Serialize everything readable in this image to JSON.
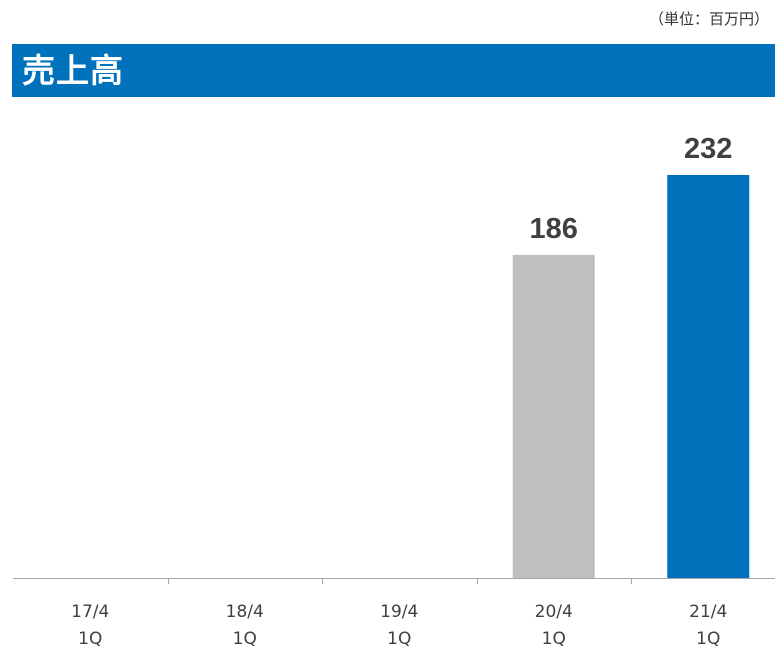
{
  "header": {
    "unit_label": "（単位：百万円）",
    "title": "売上高"
  },
  "colors": {
    "title_bar": "#0072bc",
    "previous_year_bar": "#bfbfbf",
    "current_year_bar": "#0072bc",
    "axis": "#a6a6a6",
    "value_label": "#404040",
    "tick_label": "#404040"
  },
  "chart_data": {
    "type": "bar",
    "title": "売上高",
    "xlabel": "",
    "ylabel": "",
    "categories": [
      [
        "17/4",
        "1Q"
      ],
      [
        "18/4",
        "1Q"
      ],
      [
        "19/4",
        "1Q"
      ],
      [
        "20/4",
        "1Q"
      ],
      [
        "21/4",
        "1Q"
      ]
    ],
    "values": [
      null,
      null,
      null,
      186,
      232
    ],
    "value_labels": [
      "",
      "",
      "",
      "186",
      "232"
    ],
    "bar_colors": [
      "#bfbfbf",
      "#bfbfbf",
      "#bfbfbf",
      "#bfbfbf",
      "#0072bc"
    ],
    "ylim": [
      0,
      232
    ],
    "grid": false
  }
}
